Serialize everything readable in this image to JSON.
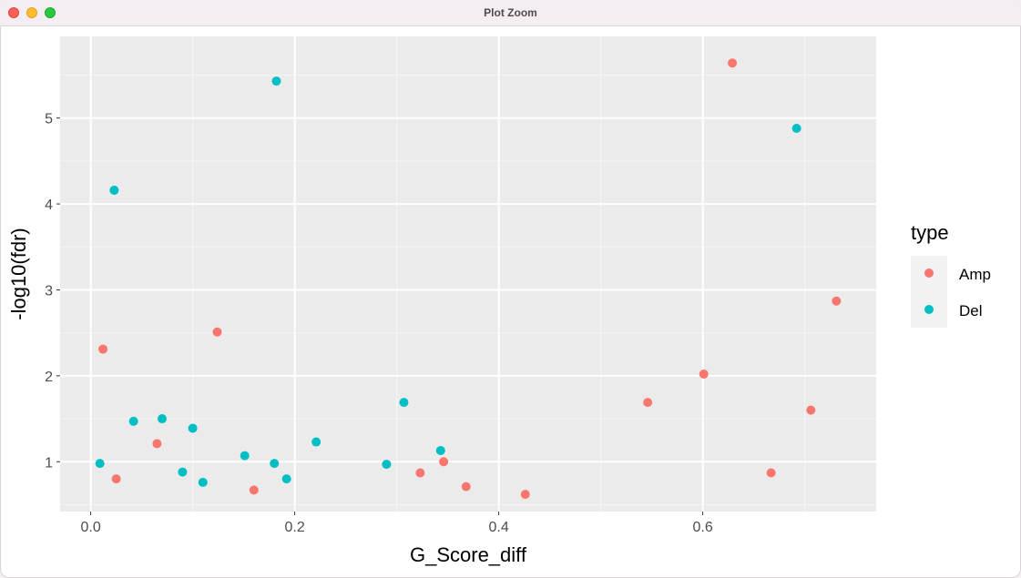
{
  "window": {
    "title": "Plot Zoom"
  },
  "chart_data": {
    "type": "scatter",
    "xlabel": "G_Score_diff",
    "ylabel": "-log10(fdr)",
    "xlim": [
      -0.03,
      0.77
    ],
    "ylim": [
      0.42,
      5.95
    ],
    "x_ticks": [
      0.0,
      0.2,
      0.4,
      0.6
    ],
    "x_tick_labels": [
      "0.0",
      "0.2",
      "0.4",
      "0.6"
    ],
    "y_ticks": [
      1,
      2,
      3,
      4,
      5
    ],
    "y_tick_labels": [
      "1",
      "2",
      "3",
      "4",
      "5"
    ],
    "grid": true,
    "legend_position": "right",
    "legend_title": "type",
    "series": [
      {
        "name": "Amp",
        "color": "#F8766D",
        "points": [
          [
            0.012,
            2.31
          ],
          [
            0.025,
            0.8
          ],
          [
            0.065,
            1.21
          ],
          [
            0.124,
            2.51
          ],
          [
            0.16,
            0.67
          ],
          [
            0.323,
            0.87
          ],
          [
            0.346,
            1.0
          ],
          [
            0.368,
            0.71
          ],
          [
            0.426,
            0.62
          ],
          [
            0.546,
            1.69
          ],
          [
            0.601,
            2.02
          ],
          [
            0.629,
            5.64
          ],
          [
            0.667,
            0.87
          ],
          [
            0.706,
            1.6
          ],
          [
            0.731,
            2.87
          ]
        ]
      },
      {
        "name": "Del",
        "color": "#00BFC4",
        "points": [
          [
            0.009,
            0.98
          ],
          [
            0.023,
            4.16
          ],
          [
            0.042,
            1.47
          ],
          [
            0.07,
            1.5
          ],
          [
            0.09,
            0.88
          ],
          [
            0.1,
            1.39
          ],
          [
            0.11,
            0.76
          ],
          [
            0.151,
            1.07
          ],
          [
            0.18,
            0.98
          ],
          [
            0.182,
            5.43
          ],
          [
            0.192,
            0.8
          ],
          [
            0.221,
            1.23
          ],
          [
            0.29,
            0.97
          ],
          [
            0.307,
            1.69
          ],
          [
            0.343,
            1.13
          ],
          [
            0.692,
            4.88
          ]
        ]
      }
    ]
  }
}
